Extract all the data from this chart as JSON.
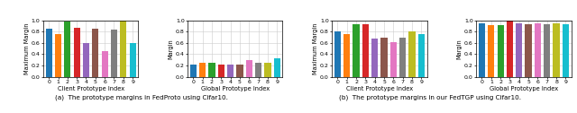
{
  "colors": [
    "#1f77b4",
    "#ff7f0e",
    "#2ca02c",
    "#d62728",
    "#9467bd",
    "#8c564b",
    "#e377c2",
    "#7f7f7f",
    "#bcbd22",
    "#17becf"
  ],
  "fedproto_client": [
    0.85,
    0.76,
    0.98,
    0.87,
    0.6,
    0.85,
    0.46,
    0.84,
    0.99,
    0.6
  ],
  "fedproto_global": [
    0.22,
    0.25,
    0.25,
    0.21,
    0.21,
    0.22,
    0.3,
    0.25,
    0.25,
    0.33
  ],
  "fedtgp_client": [
    0.8,
    0.75,
    0.93,
    0.93,
    0.68,
    0.7,
    0.61,
    0.69,
    0.8,
    0.75
  ],
  "fedtgp_global": [
    0.95,
    0.92,
    0.92,
    1.0,
    0.95,
    0.93,
    0.95,
    0.93,
    0.95,
    0.93
  ],
  "ylabel_left": "Maximum Margin",
  "ylabel_right": "Margin",
  "xlabel_client": "Client Prototype Index",
  "xlabel_global": "Global Prototype Index",
  "caption_a": "(a)  The prototype margins in FedProto using Cifar10.",
  "caption_b": "(b)  The prototype margins in our FedTGP using Cifar10.",
  "ylim": [
    0.0,
    1.0
  ],
  "yticks": [
    0.0,
    0.2,
    0.4,
    0.6,
    0.8,
    1.0
  ],
  "xticks": [
    0,
    1,
    2,
    3,
    4,
    5,
    6,
    7,
    8,
    9
  ],
  "bar_width": 0.7
}
